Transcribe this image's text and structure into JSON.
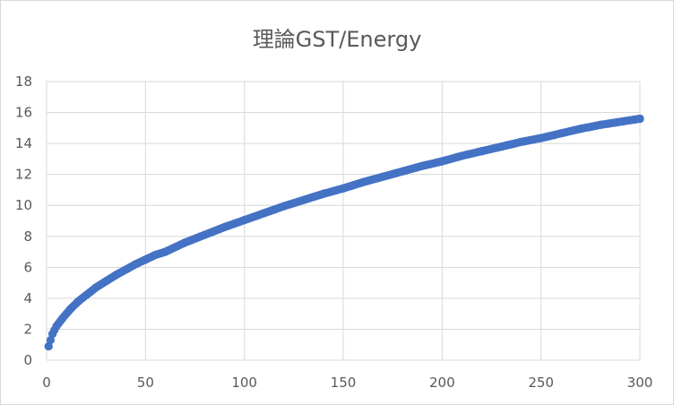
{
  "chart_data": {
    "type": "scatter",
    "title": "理論GST/Energy",
    "xlabel": "",
    "ylabel": "",
    "xlim": [
      0,
      300
    ],
    "ylim": [
      0,
      18
    ],
    "x_ticks": [
      "0",
      "50",
      "100",
      "150",
      "200",
      "250",
      "300"
    ],
    "y_ticks": [
      "0",
      "2",
      "4",
      "6",
      "8",
      "10",
      "12",
      "14",
      "16",
      "18"
    ],
    "grid": true,
    "legend": "none",
    "color": "#4472c4",
    "series": [
      {
        "x": [
          1,
          3,
          5,
          8,
          12,
          16,
          20,
          25,
          30,
          35,
          40,
          45,
          50,
          55,
          60,
          70,
          80,
          90,
          100,
          110,
          120,
          130,
          140,
          150,
          160,
          170,
          180,
          190,
          200,
          210,
          220,
          230,
          240,
          250,
          260,
          270,
          280,
          290,
          300
        ],
        "y": [
          0.9,
          1.7,
          2.2,
          2.7,
          3.3,
          3.8,
          4.2,
          4.7,
          5.1,
          5.5,
          5.85,
          6.2,
          6.5,
          6.8,
          7.0,
          7.6,
          8.1,
          8.6,
          9.05,
          9.5,
          9.95,
          10.35,
          10.75,
          11.1,
          11.5,
          11.85,
          12.2,
          12.55,
          12.85,
          13.2,
          13.5,
          13.8,
          14.1,
          14.35,
          14.65,
          14.95,
          15.2,
          15.4,
          15.6
        ]
      }
    ]
  }
}
